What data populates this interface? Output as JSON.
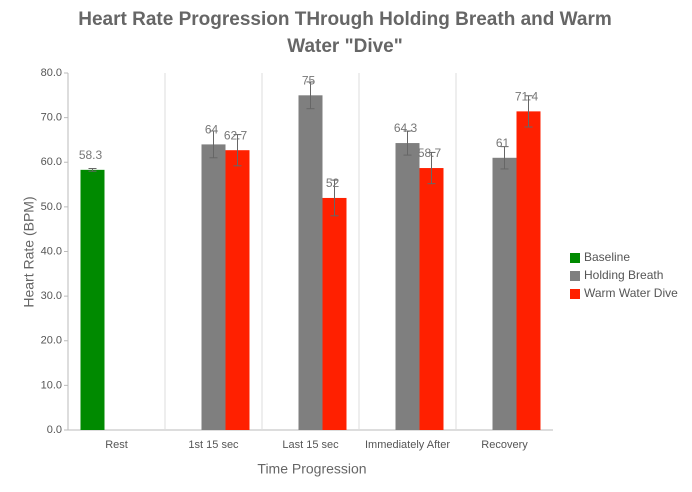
{
  "chart_data": {
    "type": "bar",
    "title": [
      "Heart Rate Progression THrough Holding Breath and Warm",
      "Water \"Dive\""
    ],
    "x_label": "Time Progression",
    "y_label": "Heart Rate (BPM)",
    "categories": [
      "Rest",
      "1st 15 sec",
      "Last 15 sec",
      "Immediately After",
      "Recovery"
    ],
    "series": [
      {
        "name": "Baseline",
        "color": "#008a00",
        "values": [
          58.3,
          null,
          null,
          null,
          null
        ],
        "errors": [
          0.3,
          null,
          null,
          null,
          null
        ]
      },
      {
        "name": "Holding Breath",
        "color": "#7f7f7f",
        "values": [
          null,
          64,
          75,
          64.3,
          61
        ],
        "errors": [
          null,
          3,
          3,
          2.7,
          2.5
        ]
      },
      {
        "name": "Warm Water Dive",
        "color": "#ff2000",
        "values": [
          null,
          62.7,
          52,
          58.7,
          71.4
        ],
        "errors": [
          null,
          3.5,
          4,
          3.5,
          3.5
        ]
      }
    ],
    "ylim": [
      0,
      80
    ],
    "yticks": [
      {
        "value": 0,
        "label": "0.0"
      },
      {
        "value": 10,
        "label": "10.0"
      },
      {
        "value": 20,
        "label": "20.0"
      },
      {
        "value": 30,
        "label": "30.0"
      },
      {
        "value": 40,
        "label": "40.0"
      },
      {
        "value": 50,
        "label": "50.0"
      },
      {
        "value": 60,
        "label": "60.0"
      },
      {
        "value": 70,
        "label": "70.0"
      },
      {
        "value": 80,
        "label": "80.0"
      }
    ],
    "legend": "right"
  }
}
